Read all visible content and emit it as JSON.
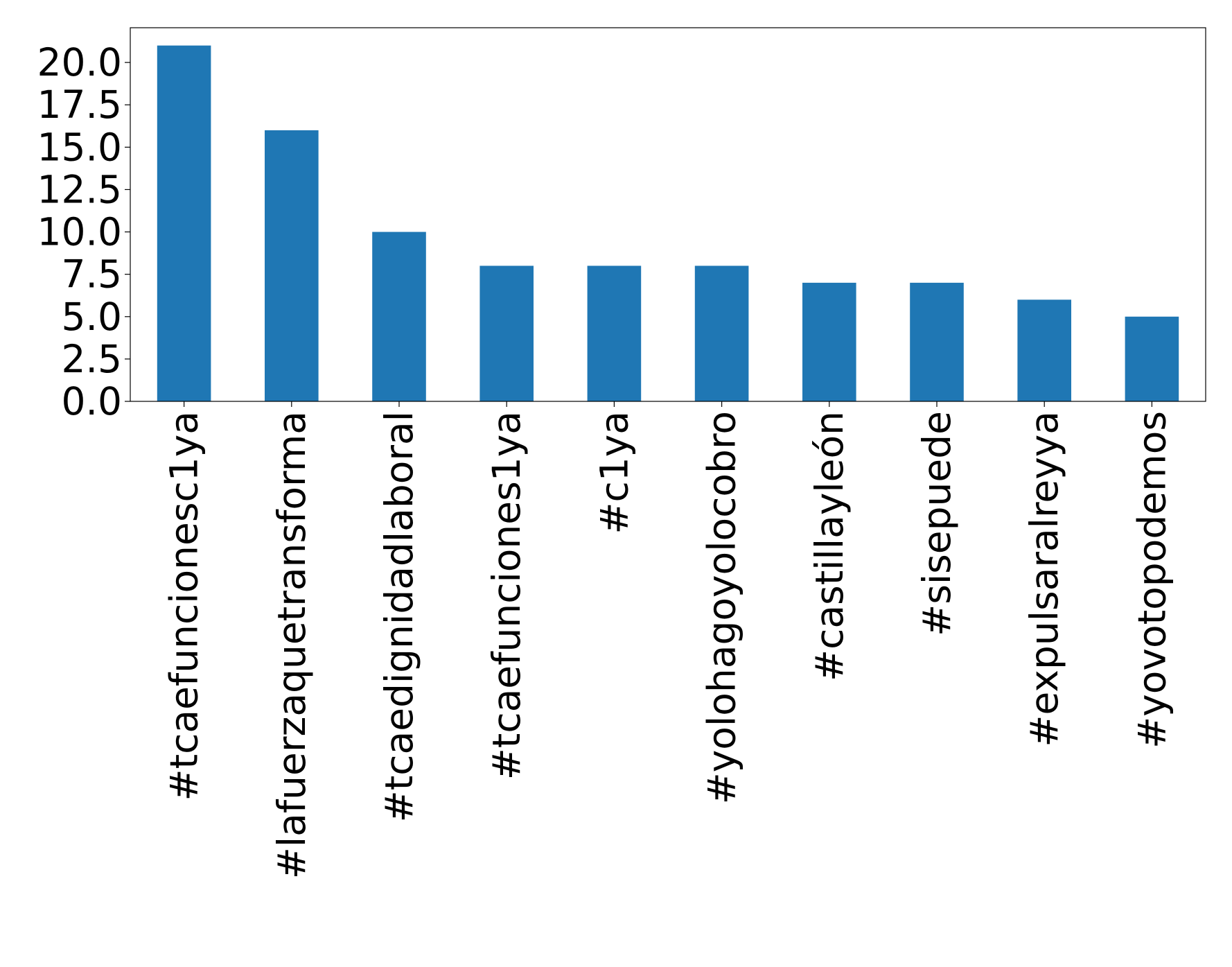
{
  "chart_data": {
    "type": "bar",
    "categories": [
      "#tcaefuncionesc1ya",
      "#lafuerzaquetransforma",
      "#tcaedignidadlaboral",
      "#tcaefunciones1ya",
      "#c1ya",
      "#yolohagoyolocobro",
      "#castillayleón",
      "#sisepuede",
      "#expulsaralreyya",
      "#yovotopodemos"
    ],
    "values": [
      21,
      16,
      10,
      8,
      8,
      8,
      7,
      7,
      6,
      5
    ],
    "color": "#1f77b4",
    "ylim": [
      0,
      22.05
    ],
    "yticks": [
      {
        "value": 0,
        "label": "0.0"
      },
      {
        "value": 2.5,
        "label": "2.5"
      },
      {
        "value": 5,
        "label": "5.0"
      },
      {
        "value": 7.5,
        "label": "7.5"
      },
      {
        "value": 10,
        "label": "10.0"
      },
      {
        "value": 12.5,
        "label": "12.5"
      },
      {
        "value": 15,
        "label": "15.0"
      },
      {
        "value": 17.5,
        "label": "17.5"
      },
      {
        "value": 20,
        "label": "20.0"
      }
    ],
    "grid": false
  }
}
